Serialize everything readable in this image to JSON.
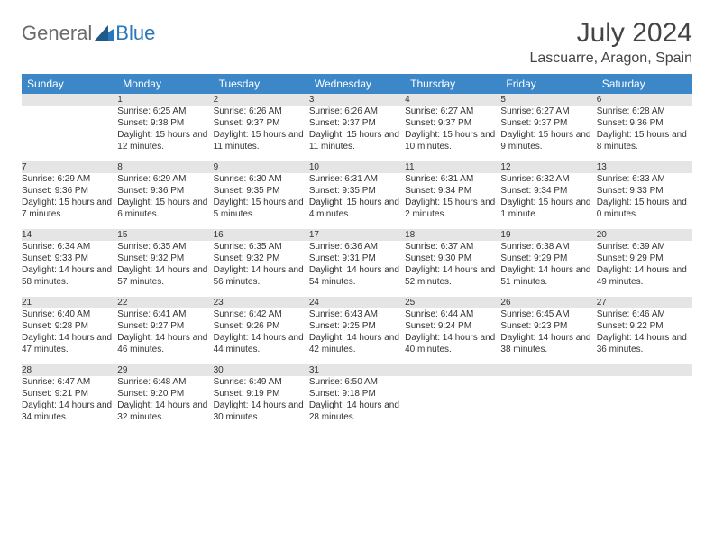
{
  "logo": {
    "text1": "General",
    "text2": "Blue"
  },
  "title": "July 2024",
  "location": "Lascuarre, Aragon, Spain",
  "colors": {
    "header_bg": "#3b87c8",
    "header_text": "#ffffff",
    "daynum_bg": "#e5e5e5",
    "border": "#2a77bb",
    "logo_gray": "#6b6b6b",
    "logo_blue": "#2a77bb"
  },
  "weekdays": [
    "Sunday",
    "Monday",
    "Tuesday",
    "Wednesday",
    "Thursday",
    "Friday",
    "Saturday"
  ],
  "weeks": [
    [
      {
        "n": "",
        "sr": "",
        "ss": "",
        "dl": ""
      },
      {
        "n": "1",
        "sr": "Sunrise: 6:25 AM",
        "ss": "Sunset: 9:38 PM",
        "dl": "Daylight: 15 hours and 12 minutes."
      },
      {
        "n": "2",
        "sr": "Sunrise: 6:26 AM",
        "ss": "Sunset: 9:37 PM",
        "dl": "Daylight: 15 hours and 11 minutes."
      },
      {
        "n": "3",
        "sr": "Sunrise: 6:26 AM",
        "ss": "Sunset: 9:37 PM",
        "dl": "Daylight: 15 hours and 11 minutes."
      },
      {
        "n": "4",
        "sr": "Sunrise: 6:27 AM",
        "ss": "Sunset: 9:37 PM",
        "dl": "Daylight: 15 hours and 10 minutes."
      },
      {
        "n": "5",
        "sr": "Sunrise: 6:27 AM",
        "ss": "Sunset: 9:37 PM",
        "dl": "Daylight: 15 hours and 9 minutes."
      },
      {
        "n": "6",
        "sr": "Sunrise: 6:28 AM",
        "ss": "Sunset: 9:36 PM",
        "dl": "Daylight: 15 hours and 8 minutes."
      }
    ],
    [
      {
        "n": "7",
        "sr": "Sunrise: 6:29 AM",
        "ss": "Sunset: 9:36 PM",
        "dl": "Daylight: 15 hours and 7 minutes."
      },
      {
        "n": "8",
        "sr": "Sunrise: 6:29 AM",
        "ss": "Sunset: 9:36 PM",
        "dl": "Daylight: 15 hours and 6 minutes."
      },
      {
        "n": "9",
        "sr": "Sunrise: 6:30 AM",
        "ss": "Sunset: 9:35 PM",
        "dl": "Daylight: 15 hours and 5 minutes."
      },
      {
        "n": "10",
        "sr": "Sunrise: 6:31 AM",
        "ss": "Sunset: 9:35 PM",
        "dl": "Daylight: 15 hours and 4 minutes."
      },
      {
        "n": "11",
        "sr": "Sunrise: 6:31 AM",
        "ss": "Sunset: 9:34 PM",
        "dl": "Daylight: 15 hours and 2 minutes."
      },
      {
        "n": "12",
        "sr": "Sunrise: 6:32 AM",
        "ss": "Sunset: 9:34 PM",
        "dl": "Daylight: 15 hours and 1 minute."
      },
      {
        "n": "13",
        "sr": "Sunrise: 6:33 AM",
        "ss": "Sunset: 9:33 PM",
        "dl": "Daylight: 15 hours and 0 minutes."
      }
    ],
    [
      {
        "n": "14",
        "sr": "Sunrise: 6:34 AM",
        "ss": "Sunset: 9:33 PM",
        "dl": "Daylight: 14 hours and 58 minutes."
      },
      {
        "n": "15",
        "sr": "Sunrise: 6:35 AM",
        "ss": "Sunset: 9:32 PM",
        "dl": "Daylight: 14 hours and 57 minutes."
      },
      {
        "n": "16",
        "sr": "Sunrise: 6:35 AM",
        "ss": "Sunset: 9:32 PM",
        "dl": "Daylight: 14 hours and 56 minutes."
      },
      {
        "n": "17",
        "sr": "Sunrise: 6:36 AM",
        "ss": "Sunset: 9:31 PM",
        "dl": "Daylight: 14 hours and 54 minutes."
      },
      {
        "n": "18",
        "sr": "Sunrise: 6:37 AM",
        "ss": "Sunset: 9:30 PM",
        "dl": "Daylight: 14 hours and 52 minutes."
      },
      {
        "n": "19",
        "sr": "Sunrise: 6:38 AM",
        "ss": "Sunset: 9:29 PM",
        "dl": "Daylight: 14 hours and 51 minutes."
      },
      {
        "n": "20",
        "sr": "Sunrise: 6:39 AM",
        "ss": "Sunset: 9:29 PM",
        "dl": "Daylight: 14 hours and 49 minutes."
      }
    ],
    [
      {
        "n": "21",
        "sr": "Sunrise: 6:40 AM",
        "ss": "Sunset: 9:28 PM",
        "dl": "Daylight: 14 hours and 47 minutes."
      },
      {
        "n": "22",
        "sr": "Sunrise: 6:41 AM",
        "ss": "Sunset: 9:27 PM",
        "dl": "Daylight: 14 hours and 46 minutes."
      },
      {
        "n": "23",
        "sr": "Sunrise: 6:42 AM",
        "ss": "Sunset: 9:26 PM",
        "dl": "Daylight: 14 hours and 44 minutes."
      },
      {
        "n": "24",
        "sr": "Sunrise: 6:43 AM",
        "ss": "Sunset: 9:25 PM",
        "dl": "Daylight: 14 hours and 42 minutes."
      },
      {
        "n": "25",
        "sr": "Sunrise: 6:44 AM",
        "ss": "Sunset: 9:24 PM",
        "dl": "Daylight: 14 hours and 40 minutes."
      },
      {
        "n": "26",
        "sr": "Sunrise: 6:45 AM",
        "ss": "Sunset: 9:23 PM",
        "dl": "Daylight: 14 hours and 38 minutes."
      },
      {
        "n": "27",
        "sr": "Sunrise: 6:46 AM",
        "ss": "Sunset: 9:22 PM",
        "dl": "Daylight: 14 hours and 36 minutes."
      }
    ],
    [
      {
        "n": "28",
        "sr": "Sunrise: 6:47 AM",
        "ss": "Sunset: 9:21 PM",
        "dl": "Daylight: 14 hours and 34 minutes."
      },
      {
        "n": "29",
        "sr": "Sunrise: 6:48 AM",
        "ss": "Sunset: 9:20 PM",
        "dl": "Daylight: 14 hours and 32 minutes."
      },
      {
        "n": "30",
        "sr": "Sunrise: 6:49 AM",
        "ss": "Sunset: 9:19 PM",
        "dl": "Daylight: 14 hours and 30 minutes."
      },
      {
        "n": "31",
        "sr": "Sunrise: 6:50 AM",
        "ss": "Sunset: 9:18 PM",
        "dl": "Daylight: 14 hours and 28 minutes."
      },
      {
        "n": "",
        "sr": "",
        "ss": "",
        "dl": ""
      },
      {
        "n": "",
        "sr": "",
        "ss": "",
        "dl": ""
      },
      {
        "n": "",
        "sr": "",
        "ss": "",
        "dl": ""
      }
    ]
  ]
}
